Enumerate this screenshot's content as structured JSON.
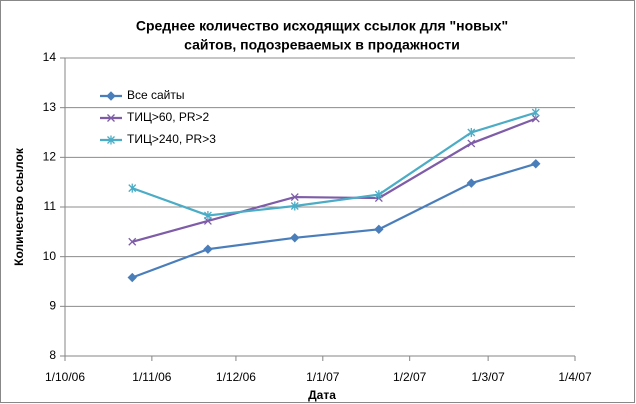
{
  "chart_data": {
    "type": "line",
    "title": [
      "Среднее количество исходящих ссылок для \"новых\"",
      "сайтов, подозреваемых в продажности"
    ],
    "x_label": "Дата",
    "y_label": "Количество ссылок",
    "x": [
      "25/10/06",
      "21/11/06",
      "22/12/06",
      "21/1/07",
      "23/2/07",
      "18/3/07"
    ],
    "xlim": [
      "1/10/06",
      "1/4/07"
    ],
    "xticks": [
      "1/10/06",
      "1/11/06",
      "1/12/06",
      "1/1/07",
      "1/2/07",
      "1/3/07",
      "1/4/07"
    ],
    "ylim": [
      8,
      14
    ],
    "yticks": [
      8,
      9,
      10,
      11,
      12,
      13,
      14
    ],
    "grid": true,
    "legend": "upper left",
    "series": [
      {
        "name": "Все сайты",
        "color": "#4a7ebb",
        "marker": "diamond",
        "values": [
          9.58,
          10.15,
          10.38,
          10.55,
          11.48,
          11.87
        ]
      },
      {
        "name": "ТИЦ>60, PR>2",
        "color": "#7e5ca8",
        "marker": "x",
        "values": [
          10.3,
          10.72,
          11.2,
          11.18,
          12.28,
          12.78
        ]
      },
      {
        "name": "ТИЦ>240, PR>3",
        "color": "#4bacc6",
        "marker": "star",
        "values": [
          11.38,
          10.83,
          11.02,
          11.25,
          12.5,
          12.9
        ]
      }
    ]
  }
}
